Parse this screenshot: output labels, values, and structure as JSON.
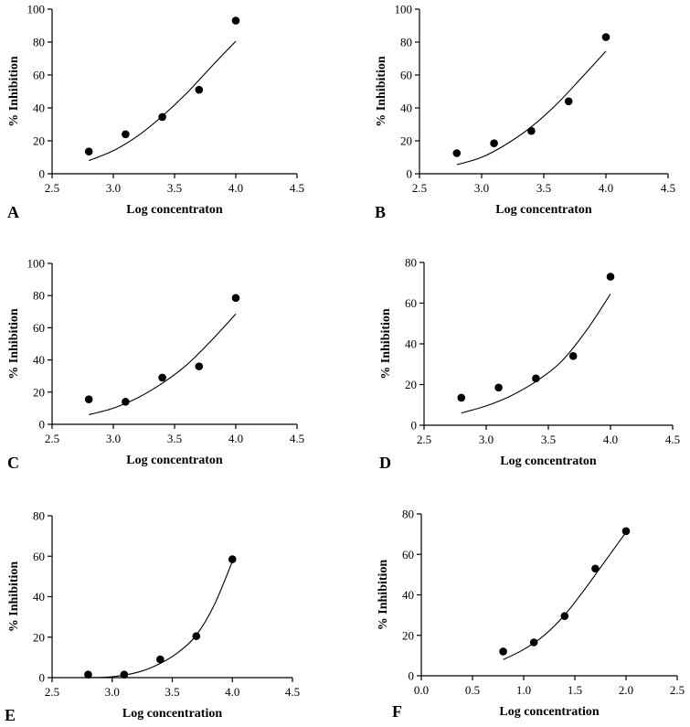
{
  "chart_data": [
    {
      "type": "scatter",
      "panel_label": "A",
      "xlabel": "Log concentraton",
      "ylabel": "% Inhibition",
      "xlim": [
        2.5,
        4.5
      ],
      "ylim": [
        0,
        100
      ],
      "xticks": [
        2.5,
        3.0,
        3.5,
        4.0,
        4.5
      ],
      "xtick_labels": [
        "2.5",
        "3.0",
        "3.5",
        "4.0",
        "4.5"
      ],
      "yticks": [
        0,
        20,
        40,
        60,
        80,
        100
      ],
      "ytick_labels": [
        "0",
        "20",
        "40",
        "60",
        "80",
        "100"
      ],
      "points": {
        "x": [
          2.8,
          3.1,
          3.4,
          3.7,
          4.0
        ],
        "y": [
          13.5,
          24,
          34.5,
          51,
          93
        ]
      },
      "fit": {
        "x": [
          2.8,
          3.0,
          3.2,
          3.4,
          3.6,
          3.8,
          4.0
        ],
        "y": [
          8,
          14,
          23,
          35,
          49,
          65,
          80.5
        ]
      },
      "grid": false
    },
    {
      "type": "scatter",
      "panel_label": "B",
      "xlabel": "Log concentraton",
      "ylabel": "% Inhibition",
      "xlim": [
        2.5,
        4.5
      ],
      "ylim": [
        0,
        100
      ],
      "xticks": [
        2.5,
        3.0,
        3.5,
        4.0,
        4.5
      ],
      "xtick_labels": [
        "2.5",
        "3.0",
        "3.5",
        "4.0",
        "4.5"
      ],
      "yticks": [
        0,
        20,
        40,
        60,
        80,
        100
      ],
      "ytick_labels": [
        "0",
        "20",
        "40",
        "60",
        "80",
        "100"
      ],
      "points": {
        "x": [
          2.8,
          3.1,
          3.4,
          3.7,
          4.0
        ],
        "y": [
          12.5,
          18.5,
          26,
          44,
          83
        ]
      },
      "fit": {
        "x": [
          2.8,
          3.0,
          3.2,
          3.4,
          3.6,
          3.8,
          4.0
        ],
        "y": [
          5.5,
          10,
          18,
          28.5,
          42,
          58,
          74.5
        ]
      },
      "grid": false
    },
    {
      "type": "scatter",
      "panel_label": "C",
      "xlabel": "Log concentraton",
      "ylabel": "% Inhibition",
      "xlim": [
        2.5,
        4.5
      ],
      "ylim": [
        0,
        100
      ],
      "xticks": [
        2.5,
        3.0,
        3.5,
        4.0,
        4.5
      ],
      "xtick_labels": [
        "2.5",
        "3.0",
        "3.5",
        "4.0",
        "4.5"
      ],
      "yticks": [
        0,
        20,
        40,
        60,
        80,
        100
      ],
      "ytick_labels": [
        "0",
        "20",
        "40",
        "60",
        "80",
        "100"
      ],
      "points": {
        "x": [
          2.8,
          3.1,
          3.4,
          3.7,
          4.0
        ],
        "y": [
          15.5,
          14,
          29,
          36,
          78.5
        ]
      },
      "fit": {
        "x": [
          2.8,
          3.0,
          3.2,
          3.4,
          3.6,
          3.8,
          4.0
        ],
        "y": [
          6,
          10,
          16.5,
          25.5,
          37,
          52,
          68.5
        ]
      },
      "grid": false
    },
    {
      "type": "scatter",
      "panel_label": "D",
      "xlabel": "Log concentraton",
      "ylabel": "% Inhibition",
      "xlim": [
        2.5,
        4.5
      ],
      "ylim": [
        0,
        80
      ],
      "xticks": [
        2.5,
        3.0,
        3.5,
        4.0,
        4.5
      ],
      "xtick_labels": [
        "2.5",
        "3.0",
        "3.5",
        "4.0",
        "4.5"
      ],
      "yticks": [
        0,
        20,
        40,
        60,
        80
      ],
      "ytick_labels": [
        "0",
        "20",
        "40",
        "60",
        "80"
      ],
      "points": {
        "x": [
          2.8,
          3.1,
          3.4,
          3.7,
          4.0
        ],
        "y": [
          13.5,
          18.5,
          23,
          34,
          73
        ]
      },
      "fit": {
        "x": [
          2.8,
          3.0,
          3.2,
          3.4,
          3.6,
          3.8,
          4.0
        ],
        "y": [
          6,
          9.5,
          14.5,
          21.5,
          31,
          46,
          64.5
        ]
      },
      "grid": false
    },
    {
      "type": "scatter",
      "panel_label": "E",
      "xlabel": "Log concentration",
      "ylabel": "% Inhibition",
      "xlim": [
        2.5,
        4.5
      ],
      "ylim": [
        0,
        80
      ],
      "xticks": [
        2.5,
        3.0,
        3.5,
        4.0,
        4.5
      ],
      "xtick_labels": [
        "2.5",
        "3.0",
        "3.5",
        "4.0",
        "4.5"
      ],
      "yticks": [
        0,
        20,
        40,
        60,
        80
      ],
      "ytick_labels": [
        "0",
        "20",
        "40",
        "60",
        "80"
      ],
      "points": {
        "x": [
          2.8,
          3.1,
          3.4,
          3.7,
          4.0
        ],
        "y": [
          1.5,
          1.5,
          9,
          20.5,
          58.5
        ]
      },
      "fit": {
        "x": [
          2.8,
          2.95,
          3.1,
          3.25,
          3.4,
          3.55,
          3.7,
          3.85,
          4.0
        ],
        "y": [
          0,
          0.2,
          1.2,
          3.3,
          7,
          12.5,
          21,
          36,
          57.5
        ]
      },
      "grid": false
    },
    {
      "type": "scatter",
      "panel_label": "F",
      "xlabel": "Log concentration",
      "ylabel": "% Inhibition",
      "xlim": [
        0.0,
        2.5
      ],
      "ylim": [
        0,
        80
      ],
      "xticks": [
        0.0,
        0.5,
        1.0,
        1.5,
        2.0,
        2.5
      ],
      "xtick_labels": [
        "0.0",
        "0.5",
        "1.0",
        "1.5",
        "2.0",
        "2.5"
      ],
      "yticks": [
        0,
        20,
        40,
        60,
        80
      ],
      "ytick_labels": [
        "0",
        "20",
        "40",
        "60",
        "80"
      ],
      "points": {
        "x": [
          0.8,
          1.1,
          1.4,
          1.7,
          2.0
        ],
        "y": [
          12,
          16.5,
          29.5,
          53,
          71.5
        ]
      },
      "fit": {
        "x": [
          0.8,
          1.0,
          1.2,
          1.4,
          1.6,
          1.8,
          2.0
        ],
        "y": [
          8,
          13,
          20,
          30,
          43,
          57,
          71
        ]
      },
      "grid": false
    }
  ]
}
